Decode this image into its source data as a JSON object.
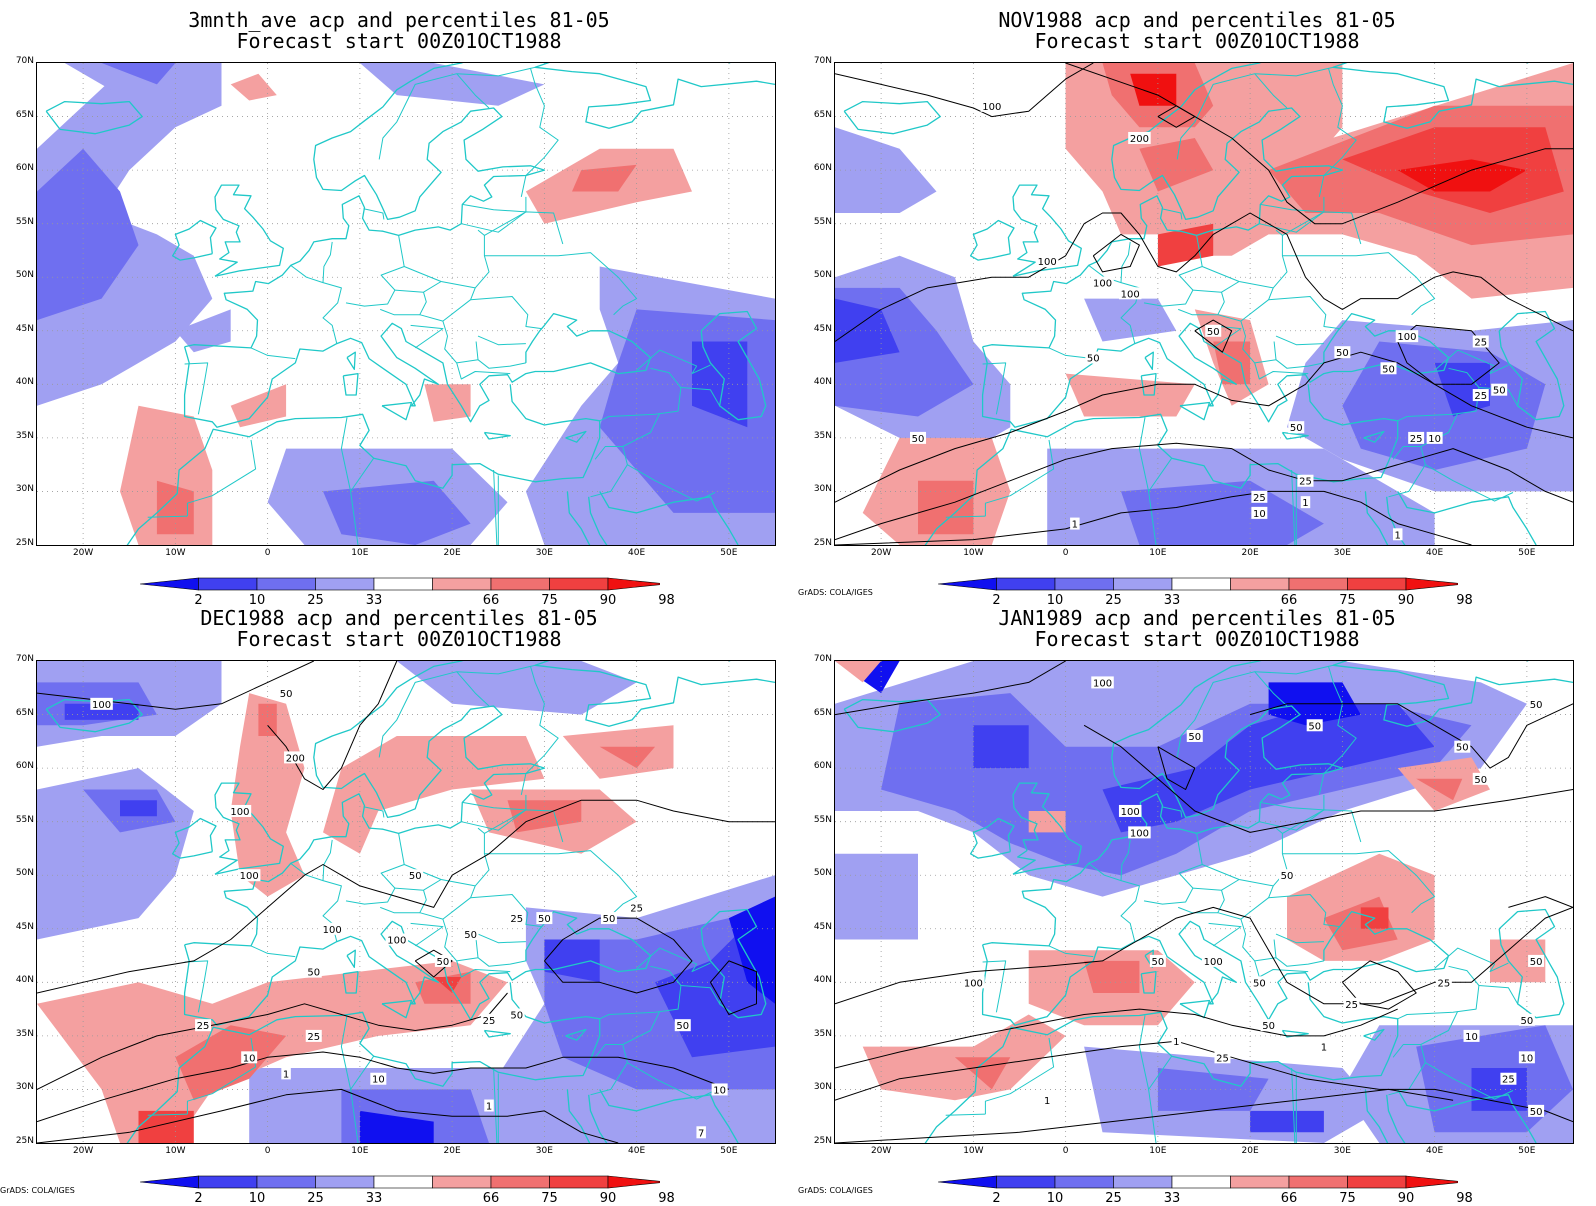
{
  "panels": [
    {
      "title_line1": "3mnth_ave acp and percentiles 81-05",
      "title_line2": "Forecast start 00Z01OCT1988",
      "credit": ""
    },
    {
      "title_line1": "NOV1988 acp and percentiles 81-05",
      "title_line2": "Forecast start 00Z01OCT1988",
      "credit": "GrADS: COLA/IGES"
    },
    {
      "title_line1": "DEC1988 acp and percentiles 81-05",
      "title_line2": "Forecast start 00Z01OCT1988",
      "credit": "GrADS: COLA/IGES"
    },
    {
      "title_line1": "JAN1989 acp and percentiles 81-05",
      "title_line2": "Forecast start 00Z01OCT1988",
      "credit": "GrADS: COLA/IGES"
    }
  ],
  "lat_labels": [
    "70N",
    "65N",
    "60N",
    "55N",
    "50N",
    "45N",
    "40N",
    "35N",
    "30N",
    "25N"
  ],
  "lon_labels": [
    "20W",
    "10W",
    "0",
    "10E",
    "20E",
    "30E",
    "40E",
    "50E"
  ],
  "colorbar_labels": [
    "2",
    "10",
    "25",
    "33",
    "66",
    "75",
    "90",
    "98"
  ],
  "colors": {
    "blue_dark": "#1010f0",
    "blue_mid": "#4040f0",
    "blue_light": "#6f6ff0",
    "blue_pale": "#a0a0f2",
    "red_pale": "#f4a0a0",
    "red_light": "#f07070",
    "red_mid": "#f04040",
    "red_dark": "#f01010",
    "coast": "#20c8c8",
    "contour": "#000000"
  },
  "contour_labels": {
    "p0": [],
    "p1": [
      "100",
      "200",
      "100",
      "100",
      "100",
      "50",
      "50",
      "50",
      "50",
      "100",
      "50",
      "50",
      "25",
      "25",
      "25",
      "10",
      "10",
      "1",
      "1",
      "1",
      "25",
      "25",
      "50"
    ],
    "p2": [
      "100",
      "200",
      "100",
      "100",
      "50",
      "50",
      "50",
      "50",
      "25",
      "25",
      "100",
      "100",
      "50",
      "50",
      "50",
      "25",
      "10",
      "1",
      "1",
      "10",
      "10",
      "7",
      "25",
      "25",
      "50",
      "50"
    ],
    "p3": [
      "100",
      "100",
      "50",
      "50",
      "50",
      "50",
      "50",
      "100",
      "50",
      "100",
      "50",
      "50",
      "50",
      "25",
      "10",
      "1",
      "1",
      "1",
      "25",
      "25",
      "50",
      "10",
      "25",
      "50",
      "50",
      "100"
    ]
  }
}
